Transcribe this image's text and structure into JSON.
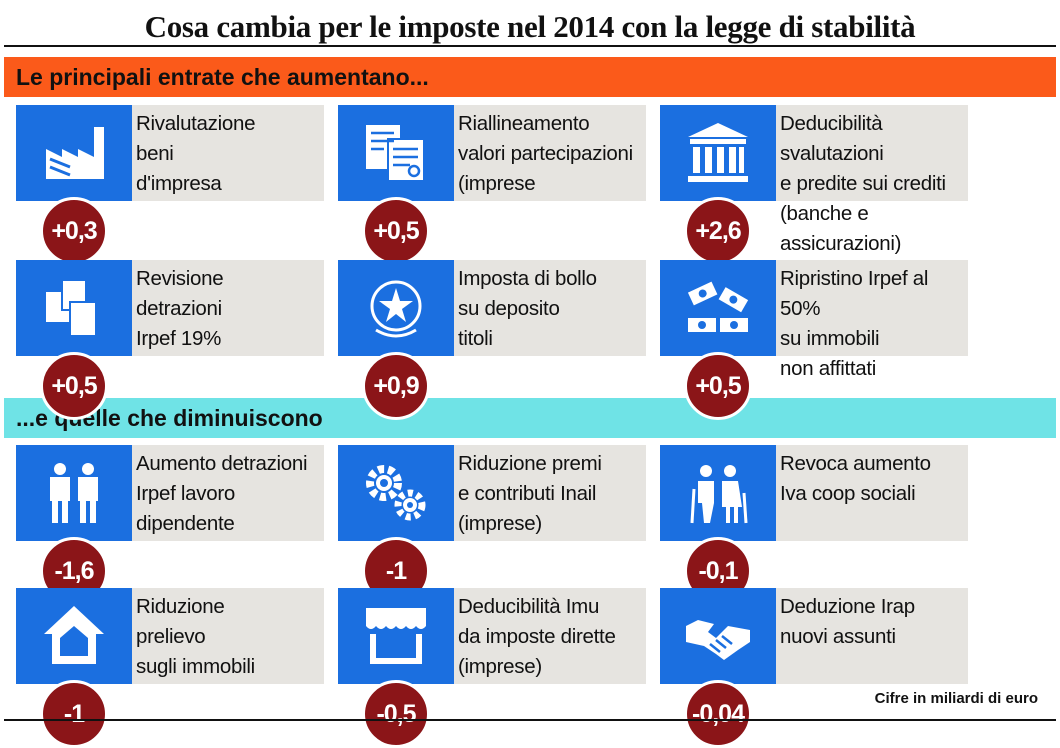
{
  "title": "Cosa cambia per le imposte nel 2014 con la legge di stabilità",
  "sections": {
    "increase": "Le principali entrate che aumentano...",
    "decrease": "...e quelle che diminuiscono"
  },
  "cards": [
    {
      "icon": "factory-icon",
      "label": "Rivalutazione\nbeni\nd'impresa",
      "value": "+0,3"
    },
    {
      "icon": "documents-icon",
      "label": "Riallineamento\nvalori partecipazioni\n(imprese",
      "value": "+0,5"
    },
    {
      "icon": "bank-icon",
      "label": "Deducibilità svalutazioni\ne predite sui crediti\n(banche e assicurazioni)",
      "value": "+2,6"
    },
    {
      "icon": "papers-icon",
      "label": "Revisione\ndetrazioni\nIrpef 19%",
      "value": "+0,5"
    },
    {
      "icon": "state-emblem-icon",
      "label": "Imposta di bollo\nsu deposito\ntitoli",
      "value": "+0,9"
    },
    {
      "icon": "banknotes-icon",
      "label": "Ripristino Irpef al 50%\nsu immobili\nnon affittati",
      "value": "+0,5"
    },
    {
      "icon": "workers-icon",
      "label": "Aumento detrazioni\nIrpef lavoro\ndipendente",
      "value": "-1,6"
    },
    {
      "icon": "gears-icon",
      "label": "Riduzione premi\ne contributi Inail\n(imprese)",
      "value": "-1"
    },
    {
      "icon": "elderly-couple-icon",
      "label": "Revoca aumento\nIva coop sociali",
      "value": "-0,1"
    },
    {
      "icon": "house-icon",
      "label": "Riduzione\nprelievo\n sugli immobili",
      "value": "-1"
    },
    {
      "icon": "shop-icon",
      "label": "Deducibilità Imu\nda imposte dirette\n(imprese)",
      "value": "-0,5"
    },
    {
      "icon": "handshake-icon",
      "label": "Deduzione Irap\nnuovi assunti",
      "value": "-0,04"
    }
  ],
  "footnote": "Cifre in miliardi di euro",
  "colors": {
    "icon_bg": "#1b6fe0",
    "panel_bg": "#e6e4e0",
    "badge_bg": "#8b1518",
    "increase_bar": "#fb5a1a",
    "decrease_bar": "#6fe3e6"
  }
}
